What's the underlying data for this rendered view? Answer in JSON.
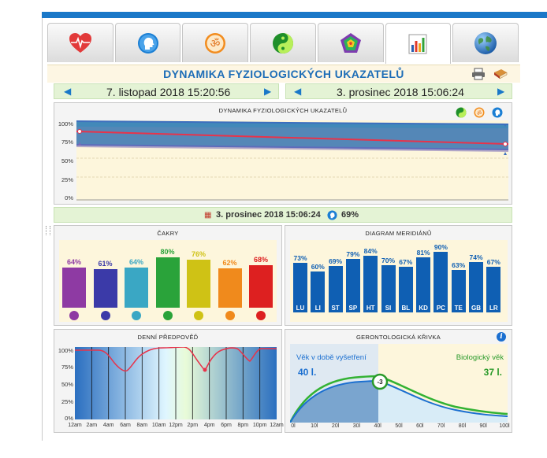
{
  "title": "DYNAMIKA FYZIOLOGICKÝCH UKAZATELŮ",
  "tabs": [
    {
      "icon": "heart-ecg-icon"
    },
    {
      "icon": "head-profile-icon"
    },
    {
      "icon": "om-symbol-icon"
    },
    {
      "icon": "yin-yang-icon"
    },
    {
      "icon": "pentagon-gem-icon"
    },
    {
      "icon": "bar-chart-icon",
      "active": true
    },
    {
      "icon": "globe-icon"
    }
  ],
  "toolbar": {
    "icons": [
      "printer-icon",
      "book-icon"
    ]
  },
  "date_nav": {
    "left_date": "7. listopad 2018 15:20:56",
    "right_date": "3. prosinec 2018 15:06:24"
  },
  "dynamics_chart": {
    "title": "DYNAMIKA FYZIOLOGICKÝCH UKAZATELŮ",
    "icons": [
      "yin-yang-icon",
      "om-icon",
      "head-icon"
    ],
    "y_ticks": [
      "100%",
      "75%",
      "50%",
      "25%",
      "0%"
    ]
  },
  "info_bar": {
    "date": "3. prosinec 2018 15:06:24",
    "value": "69%"
  },
  "chakras": {
    "title": "ČAKRY",
    "items": [
      {
        "value": "64%",
        "color": "#8e3aa3"
      },
      {
        "value": "61%",
        "color": "#3b3aa8"
      },
      {
        "value": "64%",
        "color": "#3aa7c4"
      },
      {
        "value": "80%",
        "color": "#2aa33a"
      },
      {
        "value": "76%",
        "color": "#cfc215"
      },
      {
        "value": "62%",
        "color": "#f08a1c"
      },
      {
        "value": "68%",
        "color": "#dd2020"
      }
    ]
  },
  "meridians": {
    "title": "DIAGRAM MERIDIÁNŮ",
    "items": [
      {
        "label": "LU",
        "value": "73%"
      },
      {
        "label": "LI",
        "value": "60%"
      },
      {
        "label": "ST",
        "value": "69%"
      },
      {
        "label": "SP",
        "value": "79%"
      },
      {
        "label": "HT",
        "value": "84%"
      },
      {
        "label": "SI",
        "value": "70%"
      },
      {
        "label": "BL",
        "value": "67%"
      },
      {
        "label": "KD",
        "value": "81%"
      },
      {
        "label": "PC",
        "value": "90%"
      },
      {
        "label": "TE",
        "value": "63%"
      },
      {
        "label": "GB",
        "value": "74%"
      },
      {
        "label": "LR",
        "value": "67%"
      }
    ]
  },
  "daily": {
    "title": "DENNÍ PŘEDPOVĚĎ",
    "y_ticks": [
      "100%",
      "75%",
      "50%",
      "25%",
      "0%"
    ],
    "x_labels": [
      "12am",
      "2am",
      "4am",
      "6am",
      "8am",
      "10am",
      "12pm",
      "2pm",
      "4pm",
      "6pm",
      "8pm",
      "10pm",
      "12am"
    ]
  },
  "gerontology": {
    "title": "GERONTOLOGICKÁ KŘIVKA",
    "left_label": "Věk v době vyšetření",
    "left_value": "40 l.",
    "right_label": "Biologický věk",
    "right_value": "37 l.",
    "diff": "-3",
    "x_labels": [
      "0l",
      "10l",
      "20l",
      "30l",
      "40l",
      "50l",
      "60l",
      "70l",
      "80l",
      "90l",
      "100l"
    ]
  }
}
